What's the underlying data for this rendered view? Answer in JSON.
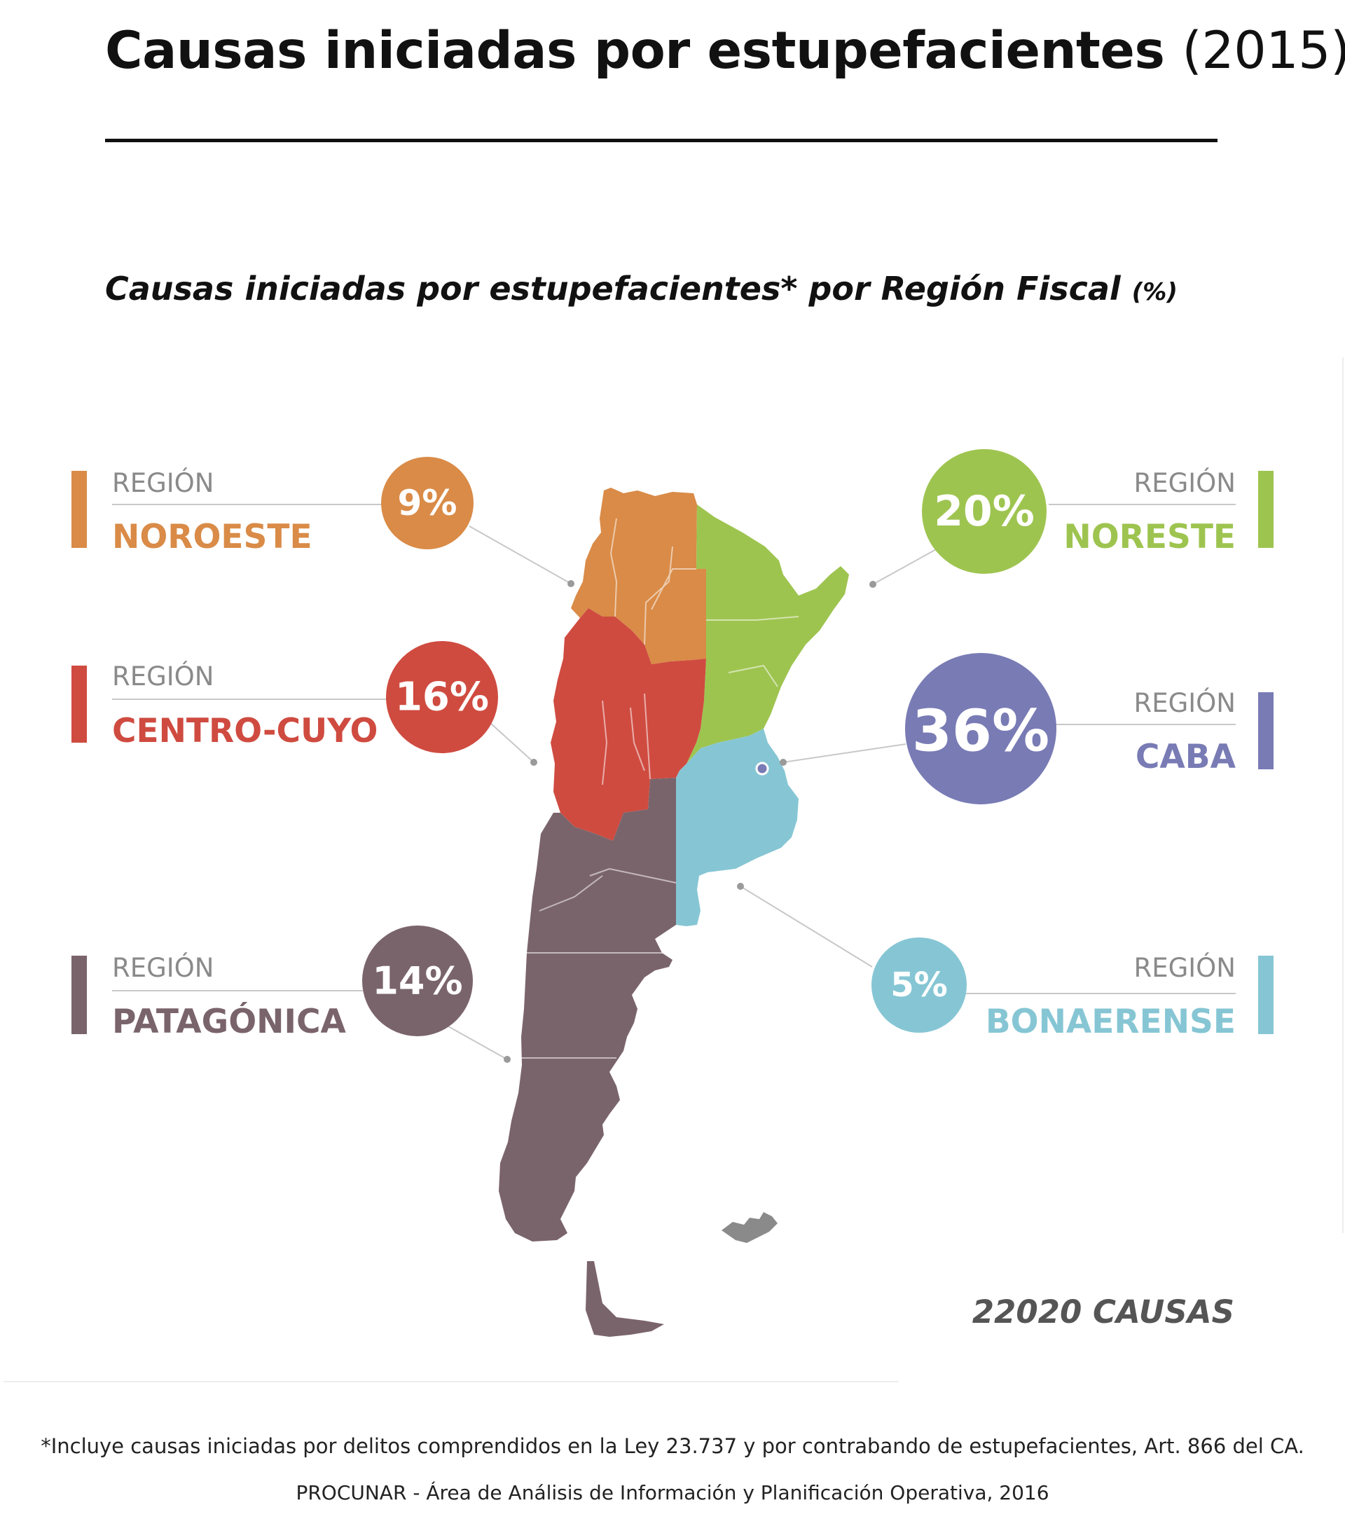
{
  "header": {
    "title_main": "Causas iniciadas por estupefacientes",
    "title_year": "(2015)"
  },
  "chart_title": {
    "main": "Causas iniciadas por estupefacientes* por Región Fiscal",
    "unit": "(%)"
  },
  "chart_data": {
    "type": "pie",
    "title": "Causas iniciadas por estupefacientes* por Región Fiscal (%)",
    "categories": [
      "NOROESTE",
      "CENTRO-CUYO",
      "PATAGÓNICA",
      "NORESTE",
      "CABA",
      "BONAERENSE"
    ],
    "values": [
      9,
      16,
      14,
      20,
      36,
      5
    ],
    "labels": [
      "9%",
      "16%",
      "14%",
      "20%",
      "36%",
      "5%"
    ],
    "region_prefix": "REGIÓN",
    "colors": [
      "#d98b47",
      "#cf4b40",
      "#7a646b",
      "#9ec450",
      "#787bb4",
      "#86c6d4"
    ],
    "total": "22020 CAUSAS"
  },
  "footer": {
    "footnote": "*Incluye causas iniciadas por delitos comprendidos en la Ley 23.737 y por contrabando de estupefacientes, Art. 866 del CA.",
    "source": "PROCUNAR - Área de Análisis de Información y Planificación Operativa, 2016"
  }
}
